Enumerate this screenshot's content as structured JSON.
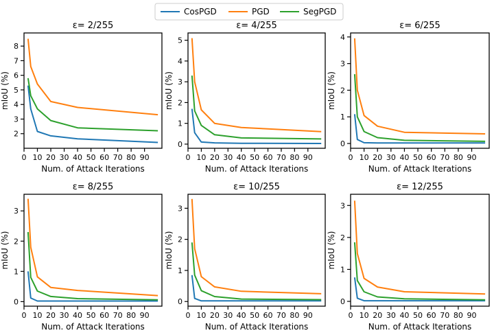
{
  "legend": {
    "entries": [
      {
        "name": "CosPGD",
        "color": "#1f77b4"
      },
      {
        "name": "PGD",
        "color": "#ff7f0e"
      },
      {
        "name": "SegPGD",
        "color": "#2ca02c"
      }
    ]
  },
  "chart_data": [
    {
      "type": "line",
      "title": "ε= 2/255",
      "xlabel": "Num. of Attack Iterations",
      "ylabel": "mIoU (%)",
      "xlim": [
        0,
        103
      ],
      "ylim": [
        1.0,
        8.9
      ],
      "xticks": [
        0,
        10,
        20,
        30,
        40,
        50,
        60,
        70,
        80,
        90
      ],
      "yticks": [
        2,
        3,
        4,
        5,
        6,
        7,
        8
      ],
      "x": [
        3,
        5,
        10,
        20,
        40,
        100
      ],
      "series": [
        {
          "name": "CosPGD",
          "color": "#1f77b4",
          "values": [
            5.3,
            3.7,
            2.15,
            1.85,
            1.65,
            1.4
          ]
        },
        {
          "name": "PGD",
          "color": "#ff7f0e",
          "values": [
            8.5,
            6.6,
            5.4,
            4.2,
            3.8,
            3.3
          ]
        },
        {
          "name": "SegPGD",
          "color": "#2ca02c",
          "values": [
            5.8,
            4.6,
            3.7,
            2.9,
            2.4,
            2.2
          ]
        }
      ]
    },
    {
      "type": "line",
      "title": "ε= 4/255",
      "xlabel": "Num. of Attack Iterations",
      "ylabel": "mIoU (%)",
      "xlim": [
        0,
        103
      ],
      "ylim": [
        -0.2,
        5.35
      ],
      "xticks": [
        0,
        10,
        20,
        30,
        40,
        50,
        60,
        70,
        80,
        90
      ],
      "yticks": [
        0,
        1,
        2,
        3,
        4,
        5
      ],
      "x": [
        3,
        5,
        10,
        20,
        40,
        100
      ],
      "series": [
        {
          "name": "CosPGD",
          "color": "#1f77b4",
          "values": [
            1.7,
            0.55,
            0.1,
            0.06,
            0.04,
            0.03
          ]
        },
        {
          "name": "PGD",
          "color": "#ff7f0e",
          "values": [
            5.1,
            3.0,
            1.65,
            1.0,
            0.8,
            0.6
          ]
        },
        {
          "name": "SegPGD",
          "color": "#2ca02c",
          "values": [
            3.3,
            1.6,
            0.9,
            0.45,
            0.3,
            0.25
          ]
        }
      ]
    },
    {
      "type": "line",
      "title": "ε= 6/255",
      "xlabel": "Num. of Attack Iterations",
      "ylabel": "mIoU (%)",
      "xlim": [
        0,
        103
      ],
      "ylim": [
        -0.18,
        4.15
      ],
      "xticks": [
        0,
        10,
        20,
        30,
        40,
        50,
        60,
        70,
        80,
        90
      ],
      "yticks": [
        0,
        1,
        2,
        3,
        4
      ],
      "x": [
        3,
        5,
        10,
        20,
        40,
        100
      ],
      "series": [
        {
          "name": "CosPGD",
          "color": "#1f77b4",
          "values": [
            1.1,
            0.15,
            0.03,
            0.02,
            0.02,
            0.02
          ]
        },
        {
          "name": "PGD",
          "color": "#ff7f0e",
          "values": [
            3.95,
            2.0,
            1.05,
            0.65,
            0.42,
            0.36
          ]
        },
        {
          "name": "SegPGD",
          "color": "#2ca02c",
          "values": [
            2.6,
            1.0,
            0.45,
            0.22,
            0.12,
            0.08
          ]
        }
      ]
    },
    {
      "type": "line",
      "title": "ε= 8/255",
      "xlabel": "Num. of Attack Iterations",
      "ylabel": "mIoU (%)",
      "xlim": [
        0,
        103
      ],
      "ylim": [
        -0.15,
        3.55
      ],
      "xticks": [
        0,
        10,
        20,
        30,
        40,
        50,
        60,
        70,
        80,
        90
      ],
      "yticks": [
        0,
        1,
        2,
        3
      ],
      "x": [
        3,
        5,
        10,
        20,
        40,
        100
      ],
      "series": [
        {
          "name": "CosPGD",
          "color": "#1f77b4",
          "values": [
            1.0,
            0.12,
            0.02,
            0.02,
            0.02,
            0.02
          ]
        },
        {
          "name": "PGD",
          "color": "#ff7f0e",
          "values": [
            3.4,
            1.8,
            0.82,
            0.47,
            0.37,
            0.2
          ]
        },
        {
          "name": "SegPGD",
          "color": "#2ca02c",
          "values": [
            2.3,
            0.8,
            0.35,
            0.17,
            0.1,
            0.06
          ]
        }
      ]
    },
    {
      "type": "line",
      "title": "ε= 10/255",
      "xlabel": "Num. of Attack Iterations",
      "ylabel": "mIoU (%)",
      "xlim": [
        0,
        103
      ],
      "ylim": [
        -0.15,
        3.45
      ],
      "xticks": [
        0,
        10,
        20,
        30,
        40,
        50,
        60,
        70,
        80,
        90
      ],
      "yticks": [
        0,
        1,
        2,
        3
      ],
      "x": [
        3,
        5,
        10,
        20,
        40,
        100
      ],
      "series": [
        {
          "name": "CosPGD",
          "color": "#1f77b4",
          "values": [
            0.85,
            0.1,
            0.02,
            0.02,
            0.02,
            0.02
          ]
        },
        {
          "name": "PGD",
          "color": "#ff7f0e",
          "values": [
            3.3,
            1.7,
            0.8,
            0.47,
            0.33,
            0.25
          ]
        },
        {
          "name": "SegPGD",
          "color": "#2ca02c",
          "values": [
            1.9,
            0.85,
            0.35,
            0.16,
            0.08,
            0.06
          ]
        }
      ]
    },
    {
      "type": "line",
      "title": "ε= 12/255",
      "xlabel": "Num. of Attack Iterations",
      "ylabel": "mIoU (%)",
      "xlim": [
        0,
        103
      ],
      "ylim": [
        -0.15,
        3.35
      ],
      "xticks": [
        0,
        10,
        20,
        30,
        40,
        50,
        60,
        70,
        80,
        90
      ],
      "yticks": [
        0,
        1,
        2,
        3
      ],
      "x": [
        3,
        5,
        10,
        20,
        40,
        100
      ],
      "series": [
        {
          "name": "CosPGD",
          "color": "#1f77b4",
          "values": [
            0.75,
            0.1,
            0.02,
            0.02,
            0.02,
            0.02
          ]
        },
        {
          "name": "PGD",
          "color": "#ff7f0e",
          "values": [
            3.15,
            1.5,
            0.72,
            0.45,
            0.3,
            0.23
          ]
        },
        {
          "name": "SegPGD",
          "color": "#2ca02c",
          "values": [
            1.85,
            0.65,
            0.3,
            0.14,
            0.08,
            0.05
          ]
        }
      ]
    }
  ]
}
